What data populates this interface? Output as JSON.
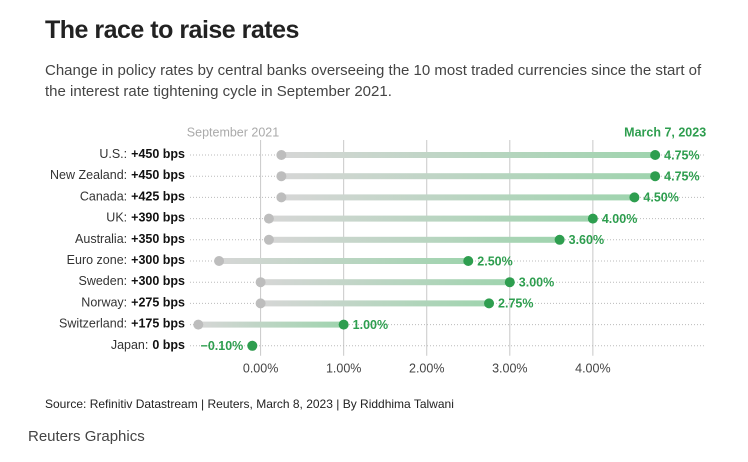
{
  "header": {
    "title": "The race to raise rates",
    "subtitle": "Change in policy rates by central banks overseeing the 10 most traded currencies since the start of the interest rate tightening cycle in September 2021."
  },
  "chart_data": {
    "type": "dumbbell",
    "categories": [
      "U.S.:",
      "New Zealand:",
      "Canada:",
      "UK:",
      "Australia:",
      "Euro zone:",
      "Sweden:",
      "Norway:",
      "Switzerland:",
      "Japan:"
    ],
    "change_labels": [
      "+450 bps",
      "+450 bps",
      "+425 bps",
      "+390 bps",
      "+350 bps",
      "+300 bps",
      "+300 bps",
      "+275 bps",
      "+175 bps",
      "0 bps"
    ],
    "series": [
      {
        "name": "September 2021",
        "color": "#bdbdbd",
        "values": [
          0.25,
          0.25,
          0.25,
          0.1,
          0.1,
          -0.5,
          0,
          0,
          -0.75,
          -0.1
        ]
      },
      {
        "name": "March 7, 2023",
        "color": "#2e9e4f",
        "values": [
          4.75,
          4.75,
          4.5,
          4.0,
          3.6,
          2.5,
          3.0,
          2.75,
          1.0,
          -0.1
        ],
        "value_labels": [
          "4.75%",
          "4.75%",
          "4.50%",
          "4.00%",
          "3.60%",
          "2.50%",
          "3.00%",
          "2.75%",
          "1.00%",
          "−0.10%"
        ]
      }
    ],
    "xlim": [
      -0.85,
      5.35
    ],
    "xticks": [
      {
        "value": 0,
        "label": "0.00%"
      },
      {
        "value": 1,
        "label": "1.00%"
      },
      {
        "value": 2,
        "label": "2.00%"
      },
      {
        "value": 3,
        "label": "3.00%"
      },
      {
        "value": 4,
        "label": "4.00%"
      }
    ],
    "grid": true
  },
  "footer": {
    "source": "Source: Refinitiv Datastream | Reuters, March 8, 2023 | By Riddhima Talwani",
    "brand": "Reuters Graphics"
  }
}
